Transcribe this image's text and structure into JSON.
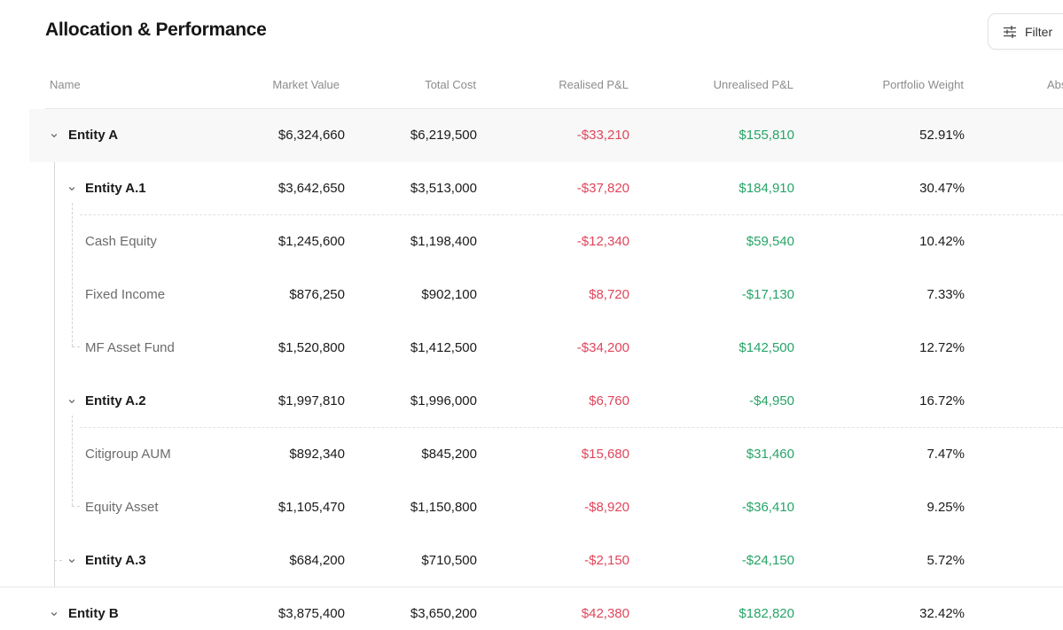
{
  "page": {
    "title": "Allocation & Performance"
  },
  "filter": {
    "label": "Filter",
    "icon": "sliders-icon"
  },
  "columns": {
    "name": "Name",
    "market_value": "Market Value",
    "total_cost": "Total Cost",
    "realised": "Realised P&L",
    "unrealised": "Unrealised P&L",
    "weight": "Portfolio Weight",
    "abs": "Abs"
  },
  "rows": [
    {
      "name": "Entity A",
      "level": 0,
      "type": "group",
      "mv": "$6,324,660",
      "tc": "$6,219,500",
      "rpl": "-$33,210",
      "upl": "$155,810",
      "w": "52.91%"
    },
    {
      "name": "Entity A.1",
      "level": 1,
      "type": "group",
      "mv": "$3,642,650",
      "tc": "$3,513,000",
      "rpl": "-$37,820",
      "upl": "$184,910",
      "w": "30.47%"
    },
    {
      "name": "Cash Equity",
      "level": 2,
      "type": "leaf",
      "mv": "$1,245,600",
      "tc": "$1,198,400",
      "rpl": "-$12,340",
      "upl": "$59,540",
      "w": "10.42%"
    },
    {
      "name": "Fixed Income",
      "level": 2,
      "type": "leaf",
      "mv": "$876,250",
      "tc": "$902,100",
      "rpl": "$8,720",
      "upl": "-$17,130",
      "w": "7.33%"
    },
    {
      "name": "MF Asset Fund",
      "level": 2,
      "type": "leaf",
      "mv": "$1,520,800",
      "tc": "$1,412,500",
      "rpl": "-$34,200",
      "upl": "$142,500",
      "w": "12.72%"
    },
    {
      "name": "Entity A.2",
      "level": 1,
      "type": "group",
      "mv": "$1,997,810",
      "tc": "$1,996,000",
      "rpl": "$6,760",
      "upl": "-$4,950",
      "w": "16.72%"
    },
    {
      "name": "Citigroup AUM",
      "level": 2,
      "type": "leaf",
      "mv": "$892,340",
      "tc": "$845,200",
      "rpl": "$15,680",
      "upl": "$31,460",
      "w": "7.47%"
    },
    {
      "name": "Equity Asset",
      "level": 2,
      "type": "leaf",
      "mv": "$1,105,470",
      "tc": "$1,150,800",
      "rpl": "-$8,920",
      "upl": "-$36,410",
      "w": "9.25%"
    },
    {
      "name": "Entity A.3",
      "level": 1,
      "type": "group",
      "mv": "$684,200",
      "tc": "$710,500",
      "rpl": "-$2,150",
      "upl": "-$24,150",
      "w": "5.72%"
    },
    {
      "name": "Entity B",
      "level": 0,
      "type": "group",
      "mv": "$3,875,400",
      "tc": "$3,650,200",
      "rpl": "$42,380",
      "upl": "$182,820",
      "w": "32.42%"
    }
  ],
  "colors": {
    "negative_red": "#e0455b",
    "positive_green": "#27a468"
  }
}
